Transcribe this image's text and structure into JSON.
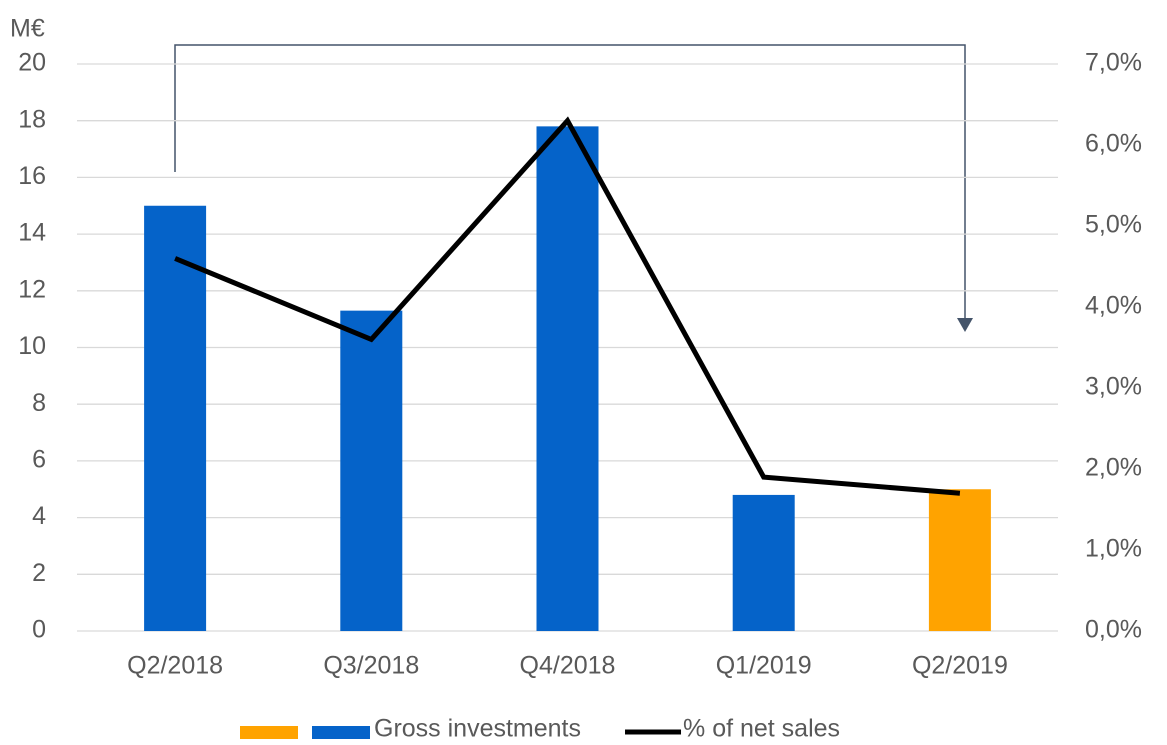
{
  "chart_data": {
    "type": "bar",
    "y_label": "M€",
    "categories": [
      "Q2/2018",
      "Q3/2018",
      "Q4/2018",
      "Q1/2019",
      "Q2/2019"
    ],
    "series": [
      {
        "name": "Gross investments",
        "type": "bar",
        "colors": [
          "#0563c9",
          "#0563c9",
          "#0563c9",
          "#0563c9",
          "#ffa300"
        ],
        "values": [
          15,
          11.3,
          17.8,
          4.8,
          5.0
        ]
      },
      {
        "name": "% of net sales",
        "type": "line",
        "axis": "y2",
        "color": "#000000",
        "values": [
          4.6,
          3.6,
          6.3,
          1.9,
          1.7
        ]
      }
    ],
    "ylim": [
      0,
      20
    ],
    "yticks": [
      0,
      2,
      4,
      6,
      8,
      10,
      12,
      14,
      16,
      18,
      20
    ],
    "y2lim": [
      0,
      7
    ],
    "y2ticks": [
      {
        "value": 0,
        "label": "0,0%"
      },
      {
        "value": 1,
        "label": "1,0%"
      },
      {
        "value": 2,
        "label": "2,0%"
      },
      {
        "value": 3,
        "label": "3,0%"
      },
      {
        "value": 4,
        "label": "4,0%"
      },
      {
        "value": 5,
        "label": "5,0%"
      },
      {
        "value": 6,
        "label": "6,0%"
      },
      {
        "value": 7,
        "label": "7,0%"
      }
    ],
    "grid": true
  }
}
